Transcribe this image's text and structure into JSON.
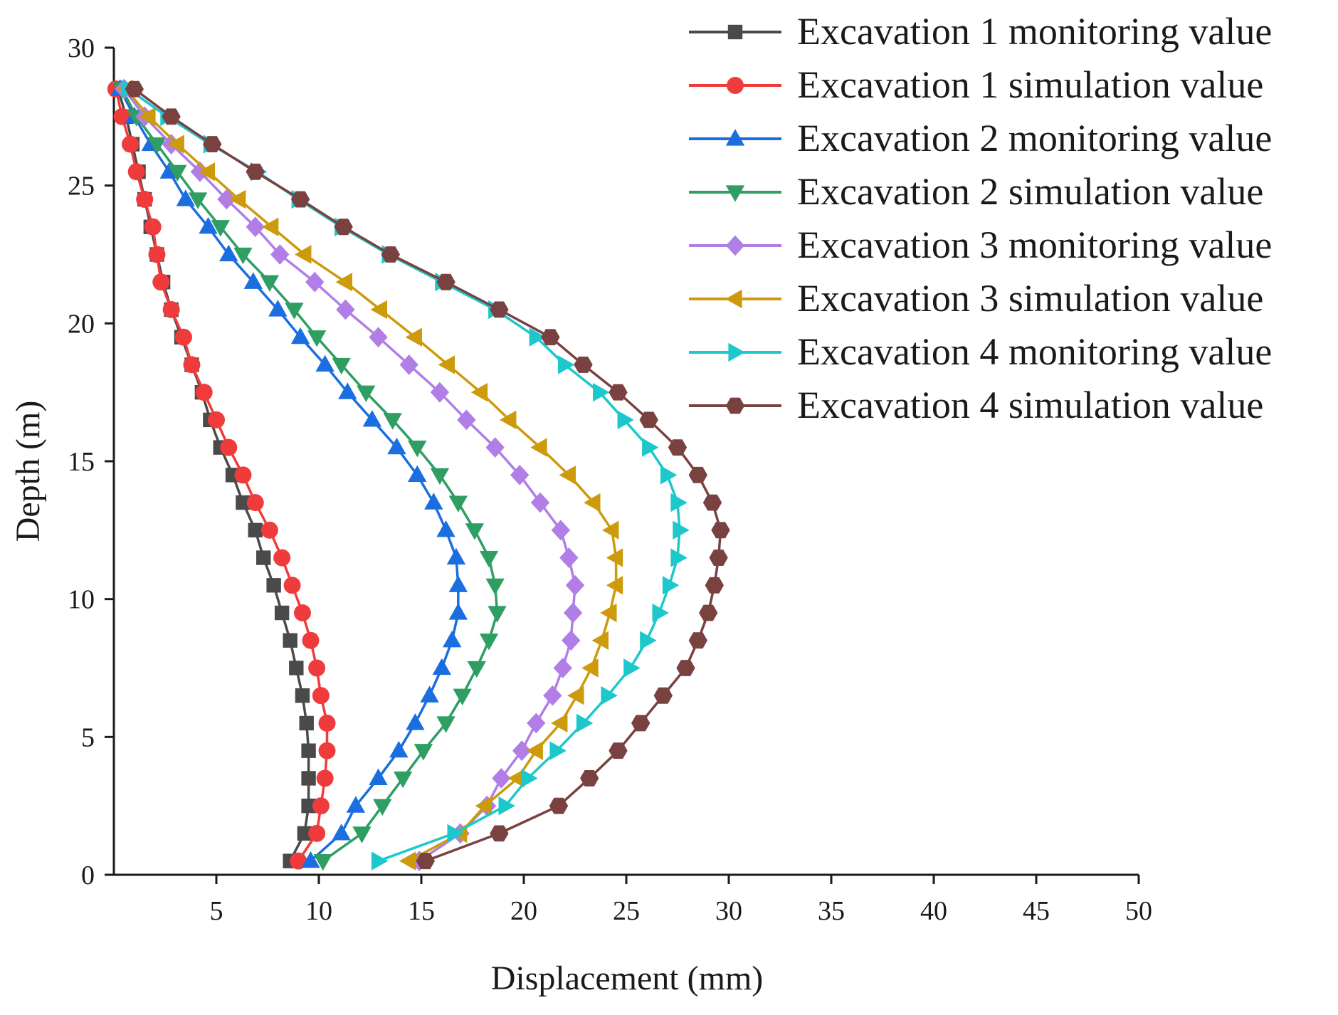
{
  "chart_data": {
    "type": "line",
    "title": "",
    "xlabel": "Displacement (mm)",
    "ylabel": "Depth (m)",
    "xlim": [
      0,
      50
    ],
    "ylim": [
      0,
      30
    ],
    "x_ticks": [
      5,
      10,
      15,
      20,
      25,
      30,
      35,
      40,
      45,
      50
    ],
    "y_ticks": [
      0,
      5,
      10,
      15,
      20,
      25,
      30
    ],
    "grid": false,
    "legend_position": "top-right",
    "depths": [
      28.5,
      27.5,
      26.5,
      25.5,
      24.5,
      23.5,
      22.5,
      21.5,
      20.5,
      19.5,
      18.5,
      17.5,
      16.5,
      15.5,
      14.5,
      13.5,
      12.5,
      11.5,
      10.5,
      9.5,
      8.5,
      7.5,
      6.5,
      5.5,
      4.5,
      3.5,
      2.5,
      1.5,
      0.5
    ],
    "series": [
      {
        "name": "Excavation 1 monitoring value",
        "color": "#4a4a4a",
        "marker": "square",
        "values": [
          0.2,
          0.6,
          0.9,
          1.2,
          1.5,
          1.8,
          2.1,
          2.4,
          2.8,
          3.3,
          3.8,
          4.3,
          4.7,
          5.2,
          5.8,
          6.3,
          6.9,
          7.3,
          7.8,
          8.2,
          8.6,
          8.9,
          9.2,
          9.4,
          9.5,
          9.5,
          9.5,
          9.3,
          8.6
        ]
      },
      {
        "name": "Excavation 1 simulation value",
        "color": "#ef3b3b",
        "marker": "circle",
        "values": [
          0.1,
          0.4,
          0.8,
          1.1,
          1.5,
          1.9,
          2.1,
          2.3,
          2.8,
          3.4,
          3.8,
          4.4,
          5.0,
          5.6,
          6.3,
          6.9,
          7.6,
          8.2,
          8.7,
          9.2,
          9.6,
          9.9,
          10.1,
          10.4,
          10.4,
          10.3,
          10.1,
          9.9,
          9.0
        ]
      },
      {
        "name": "Excavation 2 monitoring value",
        "color": "#1a6ee0",
        "marker": "triangle-up",
        "values": [
          0.3,
          1.0,
          1.8,
          2.7,
          3.5,
          4.6,
          5.6,
          6.8,
          8.0,
          9.1,
          10.3,
          11.4,
          12.6,
          13.8,
          14.8,
          15.6,
          16.2,
          16.7,
          16.8,
          16.8,
          16.5,
          16.0,
          15.4,
          14.7,
          13.9,
          12.9,
          11.8,
          11.1,
          9.6
        ]
      },
      {
        "name": "Excavation 2 simulation value",
        "color": "#2e9e63",
        "marker": "triangle-down",
        "values": [
          0.4,
          1.1,
          2.1,
          3.1,
          4.1,
          5.2,
          6.3,
          7.6,
          8.8,
          9.9,
          11.1,
          12.3,
          13.6,
          14.8,
          15.9,
          16.8,
          17.6,
          18.3,
          18.6,
          18.7,
          18.3,
          17.7,
          17.0,
          16.2,
          15.1,
          14.1,
          13.1,
          12.1,
          10.2
        ]
      },
      {
        "name": "Excavation 3 monitoring value",
        "color": "#b07ee6",
        "marker": "diamond",
        "values": [
          0.5,
          1.5,
          2.8,
          4.2,
          5.5,
          6.9,
          8.1,
          9.8,
          11.3,
          12.9,
          14.4,
          15.9,
          17.2,
          18.6,
          19.8,
          20.8,
          21.8,
          22.2,
          22.5,
          22.4,
          22.3,
          21.9,
          21.4,
          20.6,
          19.9,
          18.9,
          18.2,
          16.9,
          14.9
        ]
      },
      {
        "name": "Excavation 3 simulation value",
        "color": "#cc9a0a",
        "marker": "triangle-left",
        "values": [
          0.6,
          1.7,
          3.1,
          4.6,
          6.1,
          7.7,
          9.3,
          11.3,
          13.0,
          14.7,
          16.3,
          17.9,
          19.3,
          20.8,
          22.2,
          23.4,
          24.3,
          24.5,
          24.5,
          24.2,
          23.8,
          23.3,
          22.6,
          21.8,
          20.6,
          19.7,
          18.1,
          16.9,
          14.4
        ]
      },
      {
        "name": "Excavation 4 monitoring value",
        "color": "#1cc8cc",
        "marker": "triangle-right",
        "values": [
          0.7,
          2.6,
          4.7,
          7.0,
          9.0,
          11.1,
          13.4,
          16.0,
          18.6,
          20.6,
          22.0,
          23.7,
          24.9,
          26.1,
          27.0,
          27.5,
          27.6,
          27.5,
          27.1,
          26.6,
          26.0,
          25.2,
          24.1,
          22.9,
          21.6,
          20.2,
          19.1,
          16.6,
          12.9
        ]
      },
      {
        "name": "Excavation 4 simulation value",
        "color": "#7a4141",
        "marker": "hexagon",
        "values": [
          1.0,
          2.8,
          4.8,
          6.9,
          9.1,
          11.2,
          13.5,
          16.2,
          18.8,
          21.3,
          22.9,
          24.6,
          26.1,
          27.5,
          28.5,
          29.2,
          29.6,
          29.5,
          29.3,
          29.0,
          28.5,
          27.9,
          26.8,
          25.7,
          24.6,
          23.2,
          21.7,
          18.8,
          15.2
        ]
      }
    ]
  }
}
